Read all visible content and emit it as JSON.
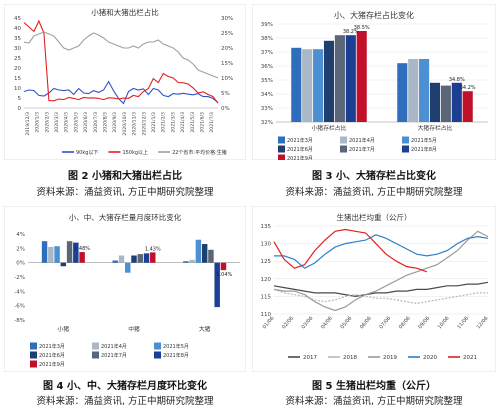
{
  "figures": [
    {
      "caption": "图 2 小猪和大猪出栏占比",
      "source": "资料来源：涌益资讯, 方正中期研究院整理"
    },
    {
      "caption": "图 3 小、大猪存栏占比变化",
      "source": "资料来源：涌益资讯, 方正中期研究院整理"
    },
    {
      "caption": "图 4 小、中、大猪存栏月度环比变化",
      "source": "资料来源：涌益资讯, 方正中期研究院整理"
    },
    {
      "caption": "图 5 生猪出栏均重（公斤）",
      "source": "资料来源：涌益资讯, 方正中期研究院整理"
    }
  ],
  "chart_data": [
    {
      "type": "line",
      "title": "小猪和大猪出栏占比",
      "ylim_left": [
        0,
        45
      ],
      "ylim_right": [
        0,
        30
      ],
      "yticks_left": [
        "0",
        "5",
        "10",
        "15",
        "20",
        "25",
        "30",
        "35",
        "40",
        "45"
      ],
      "yticks_right": [
        "0%",
        "5%",
        "10%",
        "15%",
        "20%",
        "25%",
        "30%"
      ],
      "xticks": [
        "2019/12/3",
        "2020/1/3",
        "2020/2/3",
        "2020/3/3",
        "2020/4/3",
        "2020/5/3",
        "2020/6/3",
        "2020/7/3",
        "2020/8/3",
        "2020/9/3",
        "2020/10/3",
        "2020/11/3",
        "2020/12/3",
        "2021/1/3",
        "2021/2/3",
        "2021/3/3",
        "2021/4/3",
        "2021/5/3",
        "2021/6/3",
        "2021/7/3"
      ],
      "series": [
        {
          "name": "90kg以下",
          "axis": "right",
          "color": "#2f55c4",
          "values": [
            5.5,
            6,
            5.8,
            4.2,
            4,
            5,
            6.5,
            6,
            5.8,
            6,
            4.5,
            6.5,
            5,
            4.8,
            5.8,
            5.2,
            6,
            8.8,
            5.8,
            3.2,
            1.5,
            5.5,
            6.5,
            6,
            6.4,
            4.5,
            6.5,
            6,
            4.2,
            3.8,
            4.8,
            4.6,
            4.9,
            4.6,
            4.4,
            4.8,
            3.8,
            3.8,
            3.2,
            1.8
          ]
        },
        {
          "name": "150kg以上",
          "axis": "right",
          "color": "#e02020",
          "values": [
            28.5,
            27,
            25.5,
            29,
            25,
            2.5,
            2.4,
            3,
            2.8,
            3.5,
            3.2,
            2.8,
            3.5,
            3.3,
            3.4,
            3.2,
            2.8,
            3.4,
            3.3,
            3,
            3.3,
            3.2,
            4.2,
            3.8,
            5.5,
            6.5,
            9.8,
            8.5,
            11.5,
            10.5,
            10,
            8.5,
            8.4,
            8,
            6.7,
            5,
            5.4,
            4.5,
            3.8,
            1.6
          ]
        },
        {
          "name": "22个省市:平均价格:生猪",
          "axis": "left",
          "color": "#a0a0a0",
          "values": [
            33,
            32.5,
            36,
            37,
            38,
            37,
            36,
            33,
            30,
            29,
            30,
            31,
            34,
            36,
            37.5,
            36.5,
            35,
            33,
            32,
            31,
            30,
            30,
            31,
            30,
            32,
            33,
            33,
            34,
            32,
            31,
            30,
            28,
            25,
            24,
            22,
            19,
            18,
            17,
            16,
            15
          ]
        }
      ]
    },
    {
      "type": "bar",
      "title": "小、大猪存栏占比变化",
      "categories": [
        "小猪存栏占比",
        "大猪存栏占比"
      ],
      "ylim": [
        32,
        39
      ],
      "yticks": [
        "32%",
        "33%",
        "34%",
        "35%",
        "36%",
        "37%",
        "38%",
        "39%"
      ],
      "series": [
        {
          "name": "2021年3月",
          "color": "#2e6ebc",
          "values": [
            37.3,
            36.2
          ]
        },
        {
          "name": "2021年4月",
          "color": "#a9b7c6",
          "values": [
            37.2,
            36.5
          ]
        },
        {
          "name": "2021年5月",
          "color": "#4d8fd3",
          "values": [
            37.2,
            36.5
          ]
        },
        {
          "name": "2021年6月",
          "color": "#1f3f70",
          "values": [
            37.8,
            34.8
          ]
        },
        {
          "name": "2021年7月",
          "color": "#5a6677",
          "values": [
            38.2,
            34.6
          ]
        },
        {
          "name": "2021年8月",
          "color": "#1c3f93",
          "values": [
            38.2,
            34.8
          ]
        },
        {
          "name": "2021年9月",
          "color": "#c0102a",
          "values": [
            38.5,
            34.2
          ]
        }
      ],
      "data_labels": [
        {
          "category": 0,
          "series": 5,
          "text": "38.2%"
        },
        {
          "category": 0,
          "series": 6,
          "text": "38.5%"
        },
        {
          "category": 1,
          "series": 5,
          "text": "34.8%"
        },
        {
          "category": 1,
          "series": 6,
          "text": "34.2%"
        }
      ]
    },
    {
      "type": "bar",
      "title": "小、中、大猪存栏量月度环比变化",
      "categories": [
        "小猪",
        "中猪",
        "大猪"
      ],
      "ylim": [
        -8,
        4
      ],
      "yticks": [
        "-8%",
        "-6%",
        "-4%",
        "-2%",
        "0%",
        "2%",
        "4%"
      ],
      "series": [
        {
          "name": "2021年3月",
          "color": "#2e6ebc",
          "values": [
            3.0,
            0.3,
            0.2
          ]
        },
        {
          "name": "2021年4月",
          "color": "#a9b7c6",
          "values": [
            2.2,
            1.0,
            0.4
          ]
        },
        {
          "name": "2021年5月",
          "color": "#4d8fd3",
          "values": [
            2.3,
            -1.4,
            3.2
          ]
        },
        {
          "name": "2021年6月",
          "color": "#1f3f70",
          "values": [
            -0.5,
            1.0,
            2.6
          ]
        },
        {
          "name": "2021年7月",
          "color": "#5a6677",
          "values": [
            3.0,
            1.2,
            1.8
          ]
        },
        {
          "name": "2021年8月",
          "color": "#1c3f93",
          "values": [
            2.8,
            1.3,
            -6.2
          ]
        },
        {
          "name": "2021年9月",
          "color": "#c0102a",
          "values": [
            1.48,
            1.43,
            -1.04
          ]
        }
      ],
      "data_labels": [
        {
          "category": 0,
          "series": 6,
          "text": "1.48%"
        },
        {
          "category": 1,
          "series": 6,
          "text": "1.43%"
        },
        {
          "category": 2,
          "series": 6,
          "text": "-1.04%"
        }
      ]
    },
    {
      "type": "line",
      "title": "生猪出栏均重（公斤）",
      "ylim": [
        110,
        135
      ],
      "yticks": [
        "110",
        "115",
        "120",
        "125",
        "130",
        "135"
      ],
      "xticks": [
        "01/06",
        "02/06",
        "03/06",
        "04/06",
        "05/06",
        "06/06",
        "07/06",
        "08/06",
        "09/06",
        "10/06",
        "11/06",
        "12/06"
      ],
      "series": [
        {
          "name": "2017",
          "color": "#4a4a4a",
          "values": [
            118,
            117.5,
            117,
            116.5,
            116,
            116,
            116,
            115.5,
            115,
            115.5,
            116,
            116,
            116.5,
            116.5,
            117,
            117,
            117.5,
            118,
            118,
            118.5,
            118.5,
            119
          ]
        },
        {
          "name": "2018",
          "color": "#b8b8b8",
          "values": [
            117,
            116,
            115.5,
            115,
            114,
            113.5,
            114,
            115,
            115.5,
            115,
            114.5,
            114.5,
            114,
            113.5,
            113,
            113.5,
            114,
            114.5,
            115,
            115.5,
            116,
            116
          ]
        },
        {
          "name": "2019",
          "color": "#9a9a9a",
          "values": [
            117,
            116.5,
            116.5,
            115.5,
            113.5,
            112,
            111,
            112,
            114,
            115.5,
            116.5,
            118,
            119.5,
            121,
            122,
            123,
            124,
            126,
            128,
            131,
            133.5,
            132
          ]
        },
        {
          "name": "2020",
          "color": "#2f7fc8",
          "values": [
            126.5,
            126.5,
            125.5,
            123,
            124.5,
            127,
            129,
            130,
            130.5,
            131,
            132.5,
            131.5,
            130,
            128.5,
            127,
            126.5,
            127,
            128,
            130,
            131.5,
            132,
            131.5
          ]
        },
        {
          "name": "2021",
          "color": "#e02020",
          "values": [
            130.5,
            125.5,
            123,
            124,
            128,
            131,
            133.5,
            134,
            133.5,
            133,
            130,
            127,
            125,
            123.5,
            123,
            122
          ]
        }
      ]
    }
  ]
}
